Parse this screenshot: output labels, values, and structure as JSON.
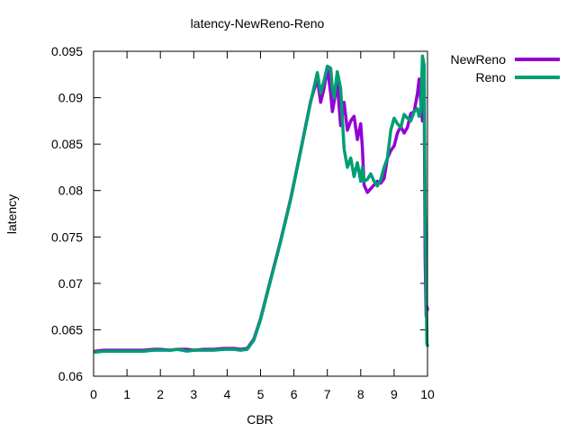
{
  "chart_data": {
    "type": "line",
    "title": "latency-NewReno-Reno",
    "xlabel": "CBR",
    "ylabel": "latency",
    "xlim": [
      0,
      10
    ],
    "ylim": [
      0.06,
      0.095
    ],
    "x_ticks": [
      0,
      1,
      2,
      3,
      4,
      5,
      6,
      7,
      8,
      9,
      10
    ],
    "x_tick_labels": [
      "0",
      "1",
      "2",
      "3",
      "4",
      "5",
      "6",
      "7",
      "8",
      "9",
      "10"
    ],
    "y_ticks": [
      0.06,
      0.065,
      0.07,
      0.075,
      0.08,
      0.085,
      0.09,
      0.095
    ],
    "y_tick_labels": [
      "0.06",
      "0.065",
      "0.07",
      "0.075",
      "0.08",
      "0.085",
      "0.09",
      "0.095"
    ],
    "legend_position": "outside-top-right",
    "grid": false,
    "series": [
      {
        "name": "NewReno",
        "color": "#9400d3",
        "x": [
          0.05,
          0.3,
          0.6,
          0.9,
          1.2,
          1.5,
          1.8,
          2.0,
          2.3,
          2.5,
          2.8,
          3.0,
          3.3,
          3.6,
          3.9,
          4.2,
          4.4,
          4.6,
          4.8,
          5.0,
          5.3,
          5.6,
          5.9,
          6.2,
          6.5,
          6.7,
          6.8,
          6.9,
          7.0,
          7.1,
          7.15,
          7.2,
          7.3,
          7.4,
          7.5,
          7.6,
          7.7,
          7.8,
          7.9,
          8.0,
          8.05,
          8.1,
          8.2,
          8.3,
          8.4,
          8.5,
          8.6,
          8.7,
          8.8,
          8.9,
          9.0,
          9.1,
          9.2,
          9.3,
          9.4,
          9.5,
          9.6,
          9.7,
          9.75,
          9.8,
          9.85,
          9.9,
          9.93,
          9.96,
          9.98,
          10.0
        ],
        "y": [
          0.0627,
          0.0628,
          0.0628,
          0.0628,
          0.0628,
          0.0628,
          0.0629,
          0.0629,
          0.0628,
          0.0629,
          0.0629,
          0.0628,
          0.0629,
          0.0629,
          0.063,
          0.063,
          0.0629,
          0.063,
          0.064,
          0.0662,
          0.0704,
          0.0746,
          0.0791,
          0.0843,
          0.0896,
          0.092,
          0.0895,
          0.091,
          0.0932,
          0.0905,
          0.0885,
          0.0895,
          0.0915,
          0.087,
          0.0895,
          0.0865,
          0.0875,
          0.088,
          0.0855,
          0.0872,
          0.0845,
          0.0806,
          0.0798,
          0.0802,
          0.0806,
          0.081,
          0.0808,
          0.0813,
          0.0835,
          0.0843,
          0.0848,
          0.0862,
          0.0869,
          0.0862,
          0.0868,
          0.0883,
          0.0885,
          0.0905,
          0.092,
          0.0895,
          0.0875,
          0.0906,
          0.0725,
          0.0665,
          0.0675,
          0.0672
        ]
      },
      {
        "name": "Reno",
        "color": "#009e73",
        "x": [
          0.05,
          0.3,
          0.6,
          0.9,
          1.2,
          1.5,
          1.8,
          2.0,
          2.3,
          2.5,
          2.8,
          3.0,
          3.3,
          3.6,
          3.9,
          4.2,
          4.4,
          4.6,
          4.8,
          5.0,
          5.3,
          5.6,
          5.9,
          6.2,
          6.5,
          6.7,
          6.8,
          6.9,
          7.0,
          7.1,
          7.15,
          7.2,
          7.3,
          7.4,
          7.5,
          7.6,
          7.7,
          7.8,
          7.9,
          8.0,
          8.05,
          8.1,
          8.2,
          8.3,
          8.4,
          8.5,
          8.6,
          8.7,
          8.8,
          8.9,
          9.0,
          9.1,
          9.2,
          9.3,
          9.4,
          9.5,
          9.6,
          9.7,
          9.75,
          9.8,
          9.85,
          9.9,
          9.93,
          9.96,
          9.98,
          10.0
        ],
        "y": [
          0.0626,
          0.0627,
          0.0627,
          0.0627,
          0.0627,
          0.0627,
          0.0628,
          0.0628,
          0.0628,
          0.0629,
          0.0627,
          0.0628,
          0.0628,
          0.0628,
          0.0629,
          0.0629,
          0.0628,
          0.0629,
          0.0639,
          0.0661,
          0.0703,
          0.0745,
          0.079,
          0.0842,
          0.0895,
          0.0927,
          0.0905,
          0.0918,
          0.0934,
          0.0932,
          0.091,
          0.09,
          0.0928,
          0.091,
          0.0845,
          0.0825,
          0.0835,
          0.0815,
          0.083,
          0.081,
          0.0825,
          0.081,
          0.0812,
          0.0818,
          0.081,
          0.0805,
          0.0812,
          0.0825,
          0.0835,
          0.0865,
          0.0878,
          0.0872,
          0.0868,
          0.0882,
          0.0878,
          0.0875,
          0.0885,
          0.0888,
          0.088,
          0.0885,
          0.0945,
          0.0935,
          0.078,
          0.07,
          0.0635,
          0.0633
        ]
      }
    ]
  }
}
